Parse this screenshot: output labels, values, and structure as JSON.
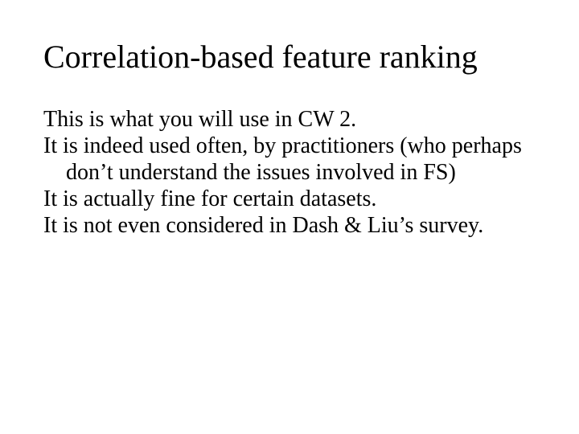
{
  "slide": {
    "title": "Correlation-based feature ranking",
    "paragraphs": [
      "This is what you will use in CW 2.",
      "It is indeed used often, by practitioners (who perhaps don’t understand the issues involved in FS)",
      "It is actually fine for certain datasets.",
      "It is not even considered in Dash & Liu’s survey."
    ],
    "colors": {
      "background": "#ffffff",
      "text": "#000000"
    },
    "typography": {
      "title_fontsize_pt": 40,
      "body_fontsize_pt": 28,
      "font_family": "Times New Roman"
    }
  }
}
